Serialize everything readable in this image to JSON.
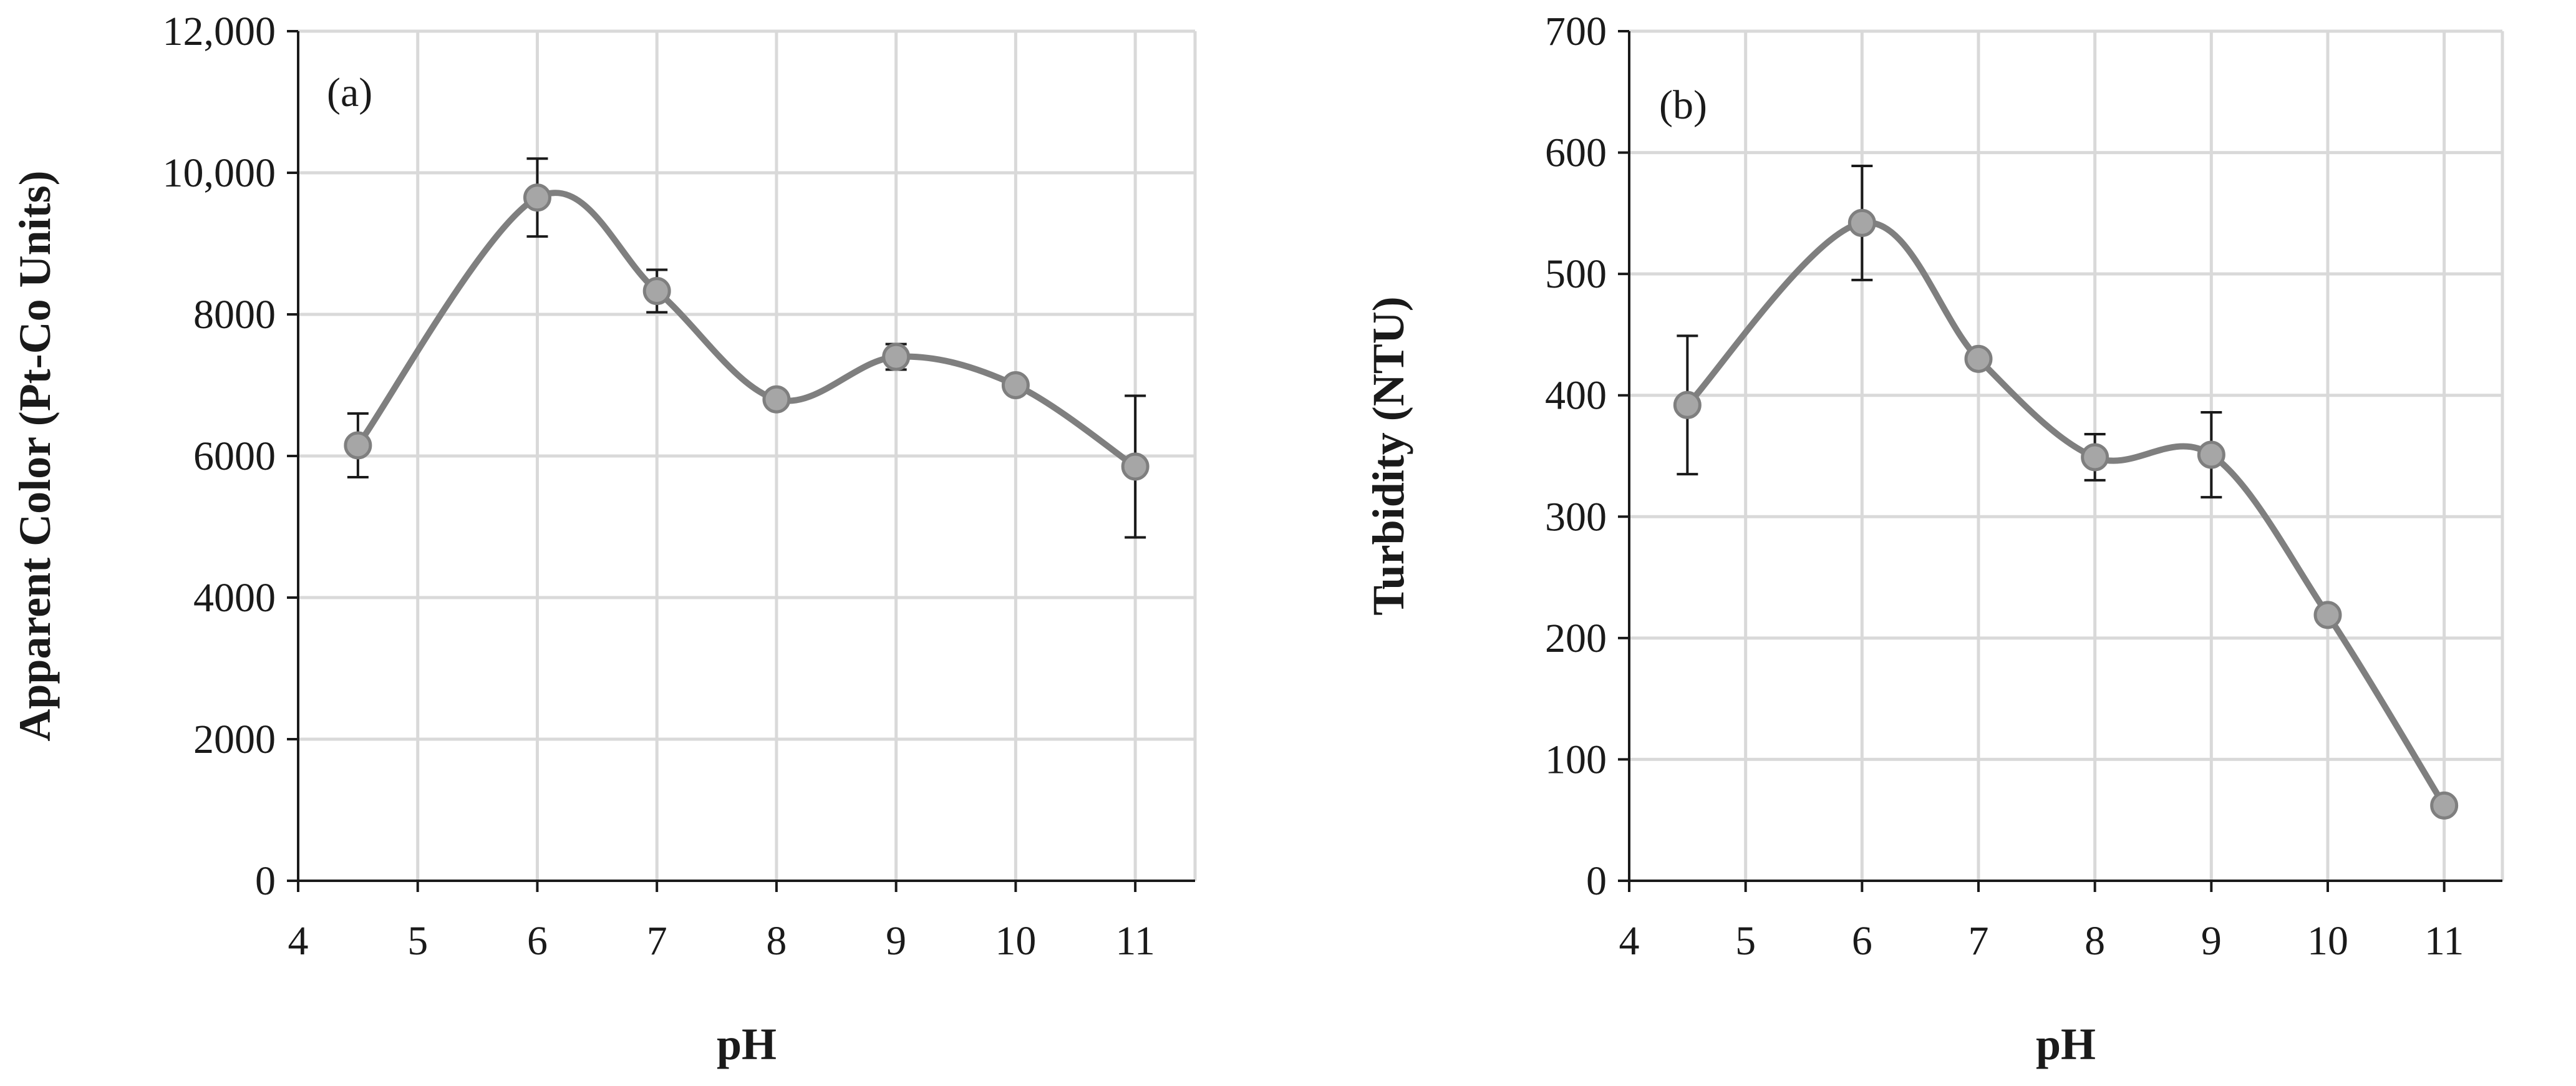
{
  "colors": {
    "grid": "#d9d9d9",
    "axis": "#1a1a1a",
    "line": "#7f7f7f",
    "marker_fill": "#a6a6a6",
    "marker_stroke": "#7f7f7f",
    "error_bar": "#1a1a1a"
  },
  "chart_data": [
    {
      "type": "line",
      "panel_label": "(a)",
      "xlabel": "pH",
      "ylabel": "Apparent Color (Pt-Co Units)",
      "xlim": [
        4,
        11.5
      ],
      "ylim": [
        0,
        12000
      ],
      "x_ticks": [
        4,
        5,
        6,
        7,
        8,
        9,
        10,
        11
      ],
      "y_ticks": [
        0,
        2000,
        4000,
        6000,
        8000,
        10000,
        12000
      ],
      "y_tick_labels": [
        "0",
        "2000",
        "4000",
        "6000",
        "8000",
        "10,000",
        "12,000"
      ],
      "grid": true,
      "smooth": true,
      "series": [
        {
          "x": [
            4.5,
            6,
            7,
            8,
            9,
            10,
            11
          ],
          "y": [
            6150,
            9650,
            8330,
            6800,
            7400,
            7000,
            5850
          ],
          "error": [
            450,
            550,
            300,
            0,
            180,
            0,
            1000
          ]
        }
      ]
    },
    {
      "type": "line",
      "panel_label": "(b)",
      "xlabel": "pH",
      "ylabel": "Turbidity (NTU)",
      "xlim": [
        4,
        11.5
      ],
      "ylim": [
        0,
        700
      ],
      "x_ticks": [
        4,
        5,
        6,
        7,
        8,
        9,
        10,
        11
      ],
      "y_ticks": [
        0,
        100,
        200,
        300,
        400,
        500,
        600,
        700
      ],
      "y_tick_labels": [
        "0",
        "100",
        "200",
        "300",
        "400",
        "500",
        "600",
        "700"
      ],
      "grid": true,
      "smooth": true,
      "series": [
        {
          "x": [
            4.5,
            6,
            7,
            8,
            9,
            10,
            11
          ],
          "y": [
            392,
            542,
            430,
            349,
            351,
            219,
            62
          ],
          "error": [
            57,
            47,
            0,
            19,
            35,
            0,
            0
          ]
        }
      ]
    }
  ]
}
